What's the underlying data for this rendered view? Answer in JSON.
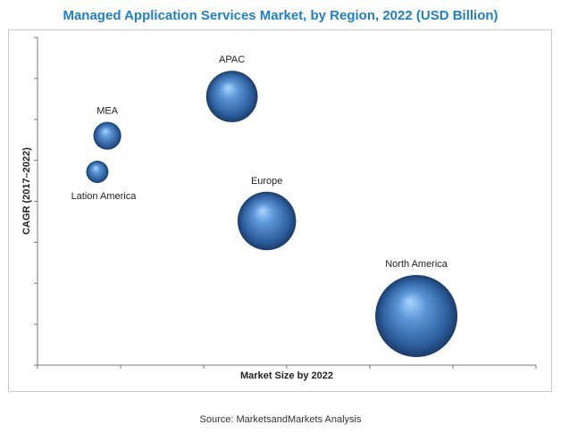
{
  "chart_data": {
    "type": "bubble",
    "title": "Managed Application Services Market, by Region, 2022 (USD Billion)",
    "xlabel": "Market Size by 2022",
    "ylabel": "CAGR (2017–2022)",
    "grid": false,
    "legend": "none",
    "x_ticks": 6,
    "y_ticks": 8,
    "bubble_color": "#3E76B9",
    "series": [
      {
        "label": "MEA",
        "x": 0.14,
        "y": 0.7,
        "size": 0.2
      },
      {
        "label": "Lation America",
        "x": 0.12,
        "y": 0.59,
        "size": 0.16
      },
      {
        "label": "APAC",
        "x": 0.39,
        "y": 0.82,
        "size": 0.37
      },
      {
        "label": "Europe",
        "x": 0.46,
        "y": 0.44,
        "size": 0.42
      },
      {
        "label": "North America",
        "x": 0.76,
        "y": 0.15,
        "size": 0.59
      }
    ]
  },
  "source": "Source: MarketsandMarkets Analysis"
}
